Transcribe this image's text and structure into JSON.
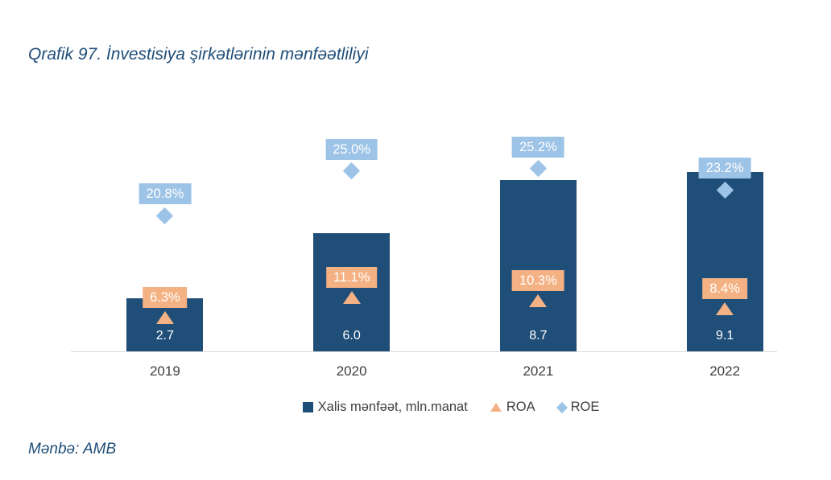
{
  "page": {
    "title": "Qrafik 97. İnvestisiya şirkətlərinin mənfəətliliyi",
    "source": "Mənbə: AMB"
  },
  "chart_data": {
    "type": "bar",
    "title": "Qrafik 97. İnvestisiya şirkətlərinin mənfəətliliyi",
    "categories": [
      "2019",
      "2020",
      "2021",
      "2022"
    ],
    "series": [
      {
        "key": "net-profit",
        "name": "Xalis mənfəət, mln.manat",
        "type": "bar",
        "values": [
          2.7,
          6.0,
          8.7,
          9.1
        ],
        "labels": [
          "2.7",
          "6.0",
          "8.7",
          "9.1"
        ],
        "color": "#1F4E79",
        "label_color": "#FFFFFF"
      },
      {
        "key": "roa",
        "name": "ROA",
        "type": "triangle",
        "values": [
          6.3,
          11.1,
          10.3,
          8.4
        ],
        "labels": [
          "6.3%",
          "11.1%",
          "10.3%",
          "8.4%"
        ],
        "color": "#F4B183",
        "label_bg": "#F4B183",
        "label_color": "#FFFFFF"
      },
      {
        "key": "roe",
        "name": "ROE",
        "type": "diamond",
        "values": [
          20.8,
          25.0,
          25.2,
          23.2
        ],
        "labels": [
          "20.8%",
          "25.0%",
          "25.2%",
          "23.2%"
        ],
        "color": "#9DC3E6",
        "label_bg": "#9DC3E6",
        "label_color": "#FFFFFF"
      }
    ],
    "legend": [
      {
        "key": "net-profit",
        "marker": "square",
        "label": "Xalis mənfəət, mln.manat",
        "color": "#1F4E79"
      },
      {
        "key": "roa",
        "marker": "triangle",
        "label": "ROA",
        "color": "#F4B183"
      },
      {
        "key": "roe",
        "marker": "diamond",
        "label": "ROE",
        "color": "#9DC3E6"
      }
    ],
    "legend_position": "bottom",
    "grid": false,
    "axis_color": "#D9D9D9",
    "tick_label_color": "#404040",
    "source": "Mənbə: AMB"
  }
}
